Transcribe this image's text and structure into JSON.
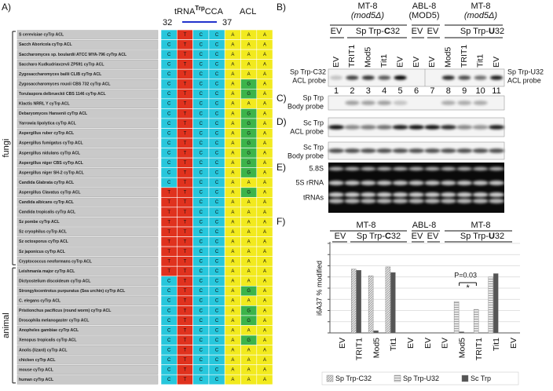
{
  "panel_a": {
    "label": "A)",
    "header": {
      "trna": "tRNA",
      "sup": "Trp",
      "cca": "CCA",
      "acl": "ACL",
      "pos_start": 32,
      "pos_end": 37
    },
    "groups": [
      "fungi",
      "animal"
    ],
    "colors": {
      "C": "#27c7dc",
      "T": "#e0321e",
      "A": "#f2ea1e",
      "G": "#3cb44a"
    },
    "rows": [
      {
        "name": "S cerevisiae cyTrp ACL",
        "seq": [
          "C",
          "T",
          "C",
          "C",
          "A",
          "A",
          "A"
        ]
      },
      {
        "name": "Sacch Aboricola cyTrp ACL",
        "seq": [
          "C",
          "T",
          "C",
          "C",
          "A",
          "A",
          "A"
        ]
      },
      {
        "name": "Saccharomyces sp. boulardii ATCC MYA-796 cyTrp ACL",
        "seq": [
          "C",
          "T",
          "C",
          "C",
          "A",
          "A",
          "A"
        ]
      },
      {
        "name": "Saccharo Kudkudriavzevii ZP591 cyTrp ACL",
        "seq": [
          "C",
          "T",
          "C",
          "C",
          "A",
          "A",
          "A"
        ]
      },
      {
        "name": "Zygosaccharomyces bailii CLIB cyTrp ACL",
        "seq": [
          "C",
          "T",
          "C",
          "C",
          "A",
          "A",
          "A"
        ]
      },
      {
        "name": "Zygosaccharomyces rouxii CBS 732 cyTrp ACL",
        "seq": [
          "C",
          "T",
          "C",
          "C",
          "A",
          "G",
          "A"
        ]
      },
      {
        "name": "Torulaspora delbrueckii CBS 1146  cyTrp ACL",
        "seq": [
          "C",
          "T",
          "C",
          "C",
          "A",
          "G",
          "A"
        ]
      },
      {
        "name": "Klactis NRRL Y cyTrp ACL",
        "seq": [
          "C",
          "T",
          "C",
          "C",
          "A",
          "A",
          "A"
        ]
      },
      {
        "name": "Debaryomyces Hansenii cyTrp ACL",
        "seq": [
          "C",
          "T",
          "C",
          "C",
          "A",
          "G",
          "A"
        ]
      },
      {
        "name": "Yarrowia lipolytica cyTrp ACL",
        "seq": [
          "C",
          "T",
          "C",
          "C",
          "A",
          "G",
          "A"
        ]
      },
      {
        "name": "Aspergillus ruber cyTrp ACL",
        "seq": [
          "C",
          "T",
          "C",
          "C",
          "A",
          "G",
          "A"
        ]
      },
      {
        "name": "Aspergillus fumigatus cyTrp ACL",
        "seq": [
          "C",
          "T",
          "C",
          "C",
          "A",
          "G",
          "A"
        ]
      },
      {
        "name": "Aspergillus nidulans cyTrp ACL",
        "seq": [
          "C",
          "T",
          "C",
          "C",
          "A",
          "G",
          "A"
        ]
      },
      {
        "name": "Aspergillus niger CBS cyTrp ACL",
        "seq": [
          "C",
          "T",
          "C",
          "C",
          "A",
          "G",
          "A"
        ]
      },
      {
        "name": "Aspergillus niger SH-2 cyTrp ACL",
        "seq": [
          "C",
          "T",
          "C",
          "C",
          "A",
          "G",
          "A"
        ]
      },
      {
        "name": "Candida Glabrata cyTrp ACL",
        "seq": [
          "C",
          "T",
          "C",
          "C",
          "A",
          "A",
          "A"
        ]
      },
      {
        "name": "Aspergillus Clavatus cyTrp ACL",
        "seq": [
          "T",
          "T",
          "C",
          "C",
          "A",
          "G",
          "A"
        ]
      },
      {
        "name": "Candida albicans cyTrp ACL",
        "seq": [
          "T",
          "T",
          "C",
          "C",
          "A",
          "A",
          "A"
        ]
      },
      {
        "name": "Candida tropicalis cyTrp ACL",
        "seq": [
          "T",
          "T",
          "C",
          "C",
          "A",
          "A",
          "A"
        ]
      },
      {
        "name": "Sz pombe cyTrp ACL",
        "seq": [
          "T",
          "T",
          "C",
          "C",
          "A",
          "A",
          "A"
        ]
      },
      {
        "name": "Sz cryophilus cyTrp ACL",
        "seq": [
          "T",
          "T",
          "C",
          "C",
          "A",
          "A",
          "A"
        ]
      },
      {
        "name": "Sz octosporus cyTrp ACL",
        "seq": [
          "T",
          "T",
          "C",
          "C",
          "A",
          "A",
          "A"
        ]
      },
      {
        "name": "Sz japonicus cyTrp ACL",
        "seq": [
          "T",
          "T",
          "C",
          "C",
          "A",
          "A",
          "A"
        ]
      },
      {
        "name": "Cryptococcus neoformans cyTrp ACL",
        "seq": [
          "T",
          "T",
          "C",
          "C",
          "A",
          "A",
          "A"
        ]
      },
      {
        "name": "Leishmania major cyTrp ACL",
        "seq": [
          "T",
          "T",
          "C",
          "C",
          "A",
          "A",
          "A"
        ]
      },
      {
        "name": "Dictyostelium discoideum cyTrp ACL",
        "seq": [
          "C",
          "T",
          "C",
          "C",
          "A",
          "A",
          "A"
        ]
      },
      {
        "name": "Strongylocentrotus purpuratus (Sea urchin)  cyTrp ACL",
        "seq": [
          "C",
          "T",
          "C",
          "C",
          "A",
          "G",
          "A"
        ]
      },
      {
        "name": "C. elegans cyTrp ACL",
        "seq": [
          "C",
          "T",
          "C",
          "C",
          "A",
          "A",
          "A"
        ]
      },
      {
        "name": "Pristionchus pacificus (round worm) cyTrp ACL",
        "seq": [
          "C",
          "T",
          "C",
          "C",
          "A",
          "G",
          "A"
        ]
      },
      {
        "name": "Drosophila melanogaster cyTrp ACL",
        "seq": [
          "C",
          "T",
          "C",
          "C",
          "A",
          "G",
          "A"
        ]
      },
      {
        "name": "Anopheles gambiae cyTrp ACL",
        "seq": [
          "C",
          "T",
          "C",
          "C",
          "A",
          "A",
          "A"
        ]
      },
      {
        "name": "Xenopus tropicalis cyTrp ACL",
        "seq": [
          "C",
          "T",
          "C",
          "C",
          "A",
          "G",
          "A"
        ]
      },
      {
        "name": "Anolis (lizard) cyTrp ACL",
        "seq": [
          "C",
          "T",
          "C",
          "C",
          "A",
          "A",
          "A"
        ]
      },
      {
        "name": "chicken cyTrp ACL",
        "seq": [
          "C",
          "T",
          "C",
          "C",
          "A",
          "A",
          "A"
        ]
      },
      {
        "name": "mouse cyTrp ACL",
        "seq": [
          "C",
          "T",
          "C",
          "C",
          "A",
          "A",
          "A"
        ]
      },
      {
        "name": "human cyTrp ACL",
        "seq": [
          "C",
          "T",
          "C",
          "C",
          "A",
          "A",
          "A"
        ]
      }
    ]
  },
  "panel_b": {
    "label": "B)",
    "strains": [
      {
        "name": "MT-8",
        "genotype": "(mod5Δ)"
      },
      {
        "name": "ABL-8",
        "genotype": "(MOD5)"
      },
      {
        "name": "MT-8",
        "genotype": "(mod5Δ)"
      }
    ],
    "constructs": [
      {
        "text": "EV"
      },
      {
        "prefix": "Sp Trp-",
        "base": "C",
        "suffix": "32"
      },
      {
        "text": "EV"
      },
      {
        "text": "EV"
      },
      {
        "prefix": "Sp Trp-",
        "base": "U",
        "suffix": "32"
      }
    ],
    "lanes": [
      "EV",
      "TRIT1",
      "Mod5",
      "Tit1",
      "EV",
      "EV",
      "EV",
      "Mod5",
      "TRIT1",
      "Tit1",
      "EV"
    ],
    "lane_numbers": [
      1,
      2,
      3,
      4,
      5,
      6,
      7,
      8,
      9,
      10,
      11
    ],
    "probe_left": [
      "Sp Trp-C32",
      "ACL probe"
    ],
    "probe_right": [
      "Sp Trp-U32",
      "ACL probe"
    ]
  },
  "panel_c": {
    "label": "C)",
    "probe": [
      "Sp Trp",
      "Body probe"
    ]
  },
  "panel_d": {
    "label": "D)",
    "probes": [
      [
        "Sc Trp",
        "ACL probe"
      ],
      [
        "Sc Trp",
        "Body probe"
      ]
    ]
  },
  "panel_e": {
    "label": "E)",
    "bands": [
      "5.8S",
      "5S rRNA",
      "tRNAs"
    ]
  },
  "chart_data": {
    "type": "bar",
    "label": "F)",
    "strains": [
      "MT-8",
      "ABL-8",
      "MT-8"
    ],
    "constructs": [
      {
        "text": "EV"
      },
      {
        "prefix": "Sp Trp-",
        "base": "C",
        "suffix": "32"
      },
      {
        "text": "EV"
      },
      {
        "text": "EV"
      },
      {
        "prefix": "Sp Trp-",
        "base": "U",
        "suffix": "32"
      }
    ],
    "y_label": "i6A37 % modified",
    "categories": [
      "EV",
      "TRIT1",
      "Mod5",
      "Tit1",
      "EV",
      "EV",
      "EV",
      "Mod5",
      "TRIT1",
      "Tit1",
      "EV"
    ],
    "series": [
      {
        "name": "Sp Trp-C32",
        "color": "#9a9a9a",
        "pattern": "diagonal",
        "values": [
          null,
          57,
          51,
          59,
          null,
          null,
          null,
          null,
          null,
          null,
          null
        ]
      },
      {
        "name": "Sp Trp-U32",
        "color": "#9a9a9a",
        "pattern": "horizontal",
        "values": [
          null,
          null,
          null,
          null,
          null,
          null,
          null,
          28,
          21,
          50,
          null
        ]
      },
      {
        "name": "Sc Trp",
        "color": "#555555",
        "pattern": "solid",
        "values": [
          null,
          56,
          2,
          54,
          null,
          null,
          null,
          1,
          null,
          53,
          null
        ]
      }
    ],
    "ylim": [
      0,
      80
    ],
    "yticks": [
      0,
      10,
      20,
      30,
      40,
      50,
      60,
      70,
      80
    ],
    "grid": true,
    "annotations": [
      "P=0.03",
      "*"
    ]
  }
}
